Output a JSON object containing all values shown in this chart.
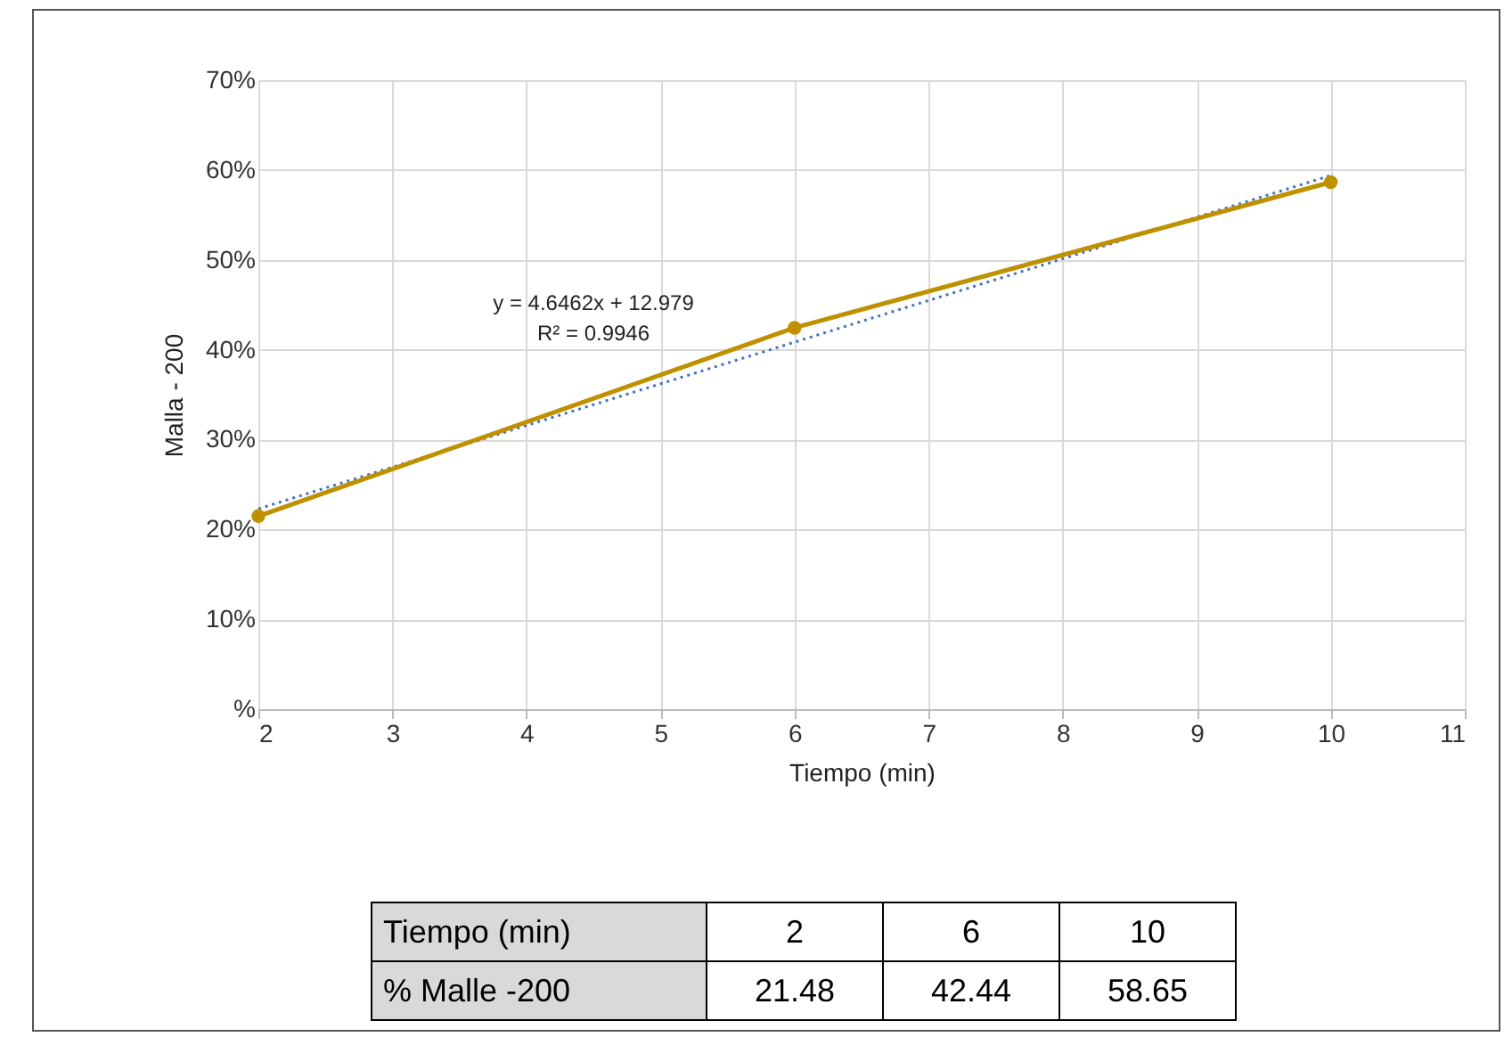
{
  "chart_data": {
    "type": "line",
    "xlabel": "Tiempo (min)",
    "ylabel": "Malla - 200",
    "x": [
      2,
      6,
      10
    ],
    "series": [
      {
        "color": "#bf9000",
        "values": [
          21.48,
          42.44,
          58.65
        ],
        "marker": "circle",
        "line_style": "solid"
      },
      {
        "type": "line",
        "color": "#4472c4",
        "x": [
          2,
          10
        ],
        "values": [
          22.3,
          59.4
        ],
        "marker": "none",
        "line_style": "dotted"
      }
    ],
    "xlim": [
      2,
      11
    ],
    "xticks": [
      2,
      3,
      4,
      5,
      6,
      7,
      8,
      9,
      10,
      11
    ],
    "ylim": [
      0,
      70
    ],
    "yticks": [
      {
        "value": 0,
        "label": "%"
      },
      {
        "value": 10,
        "label": "10%"
      },
      {
        "value": 20,
        "label": "20%"
      },
      {
        "value": 30,
        "label": "30%"
      },
      {
        "value": 40,
        "label": "40%"
      },
      {
        "value": 50,
        "label": "50%"
      },
      {
        "value": 60,
        "label": "60%"
      },
      {
        "value": 70,
        "label": "70%"
      }
    ],
    "grid": true,
    "annotations": [
      "y = 4.6462x + 12.979",
      "R² = 0.9946",
      "Tiempo (min)",
      "2",
      "6",
      "10",
      "% Malle -200",
      "21.48",
      "42.44",
      "58.65"
    ]
  }
}
